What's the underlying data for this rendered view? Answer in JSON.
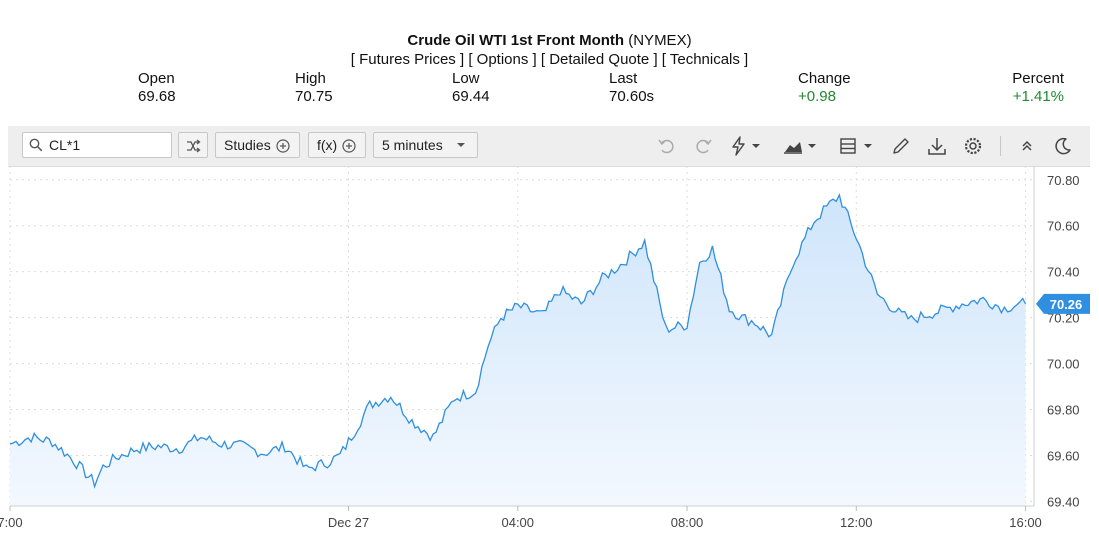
{
  "header": {
    "title_bold": "Crude Oil WTI 1st Front Month",
    "title_exchange": "(NYMEX)",
    "links": [
      "[ Futures Prices ]",
      "[ Options ]",
      "[ Detailed Quote ]",
      "[ Technicals ]"
    ],
    "stats": [
      {
        "label": "Open",
        "value": "69.68"
      },
      {
        "label": "High",
        "value": "70.75"
      },
      {
        "label": "Low",
        "value": "69.44"
      },
      {
        "label": "Last",
        "value": "70.60s"
      },
      {
        "label": "Change",
        "value": "+0.98"
      },
      {
        "label": "Percent",
        "value": "+1.41%"
      }
    ]
  },
  "toolbar": {
    "search_value": "CL*1",
    "studies_label": "Studies",
    "fx_label": "f(x)",
    "interval_label": "5 minutes",
    "icons": [
      "compare-icon",
      "undo-icon",
      "redo-icon",
      "lightning-icon",
      "chart-type-icon",
      "layout-icon",
      "pencil-icon",
      "download-icon",
      "gear-icon",
      "collapse-icon",
      "moon-icon"
    ]
  },
  "colors": {
    "line": "#2f8fe0",
    "fill_top": "#cfe5fb",
    "fill_bottom": "#f3f8fe",
    "price_badge": "#2f8fe0",
    "positive": "#1f8a2f"
  },
  "chart_data": {
    "type": "area",
    "x_tick_labels": [
      "7:00",
      "Dec 27",
      "04:00",
      "08:00",
      "12:00",
      "16:00"
    ],
    "x_ticks_hours": [
      0,
      8,
      12,
      16,
      20,
      24
    ],
    "y_ticks": [
      69.4,
      69.6,
      69.8,
      70.0,
      70.2,
      70.4,
      70.6,
      70.8
    ],
    "y_tick_labels": [
      "69.40",
      "69.60",
      "69.80",
      "70.00",
      "70.20",
      "70.40",
      "70.60",
      "70.80"
    ],
    "ylim": [
      69.38,
      70.86
    ],
    "xlim_hours": [
      0,
      24.2
    ],
    "last_value_label": "70.26",
    "grid": true,
    "hours": [
      0,
      0.5,
      1,
      1.5,
      2,
      2.2,
      2.5,
      3,
      3.5,
      4,
      4.5,
      5,
      5.5,
      6,
      6.5,
      7,
      7.5,
      7.8,
      8,
      8.5,
      9,
      9.5,
      10,
      10.5,
      11,
      11.3,
      11.6,
      12,
      12.3,
      12.6,
      13,
      13.5,
      14,
      14.5,
      15,
      15.5,
      16,
      16.3,
      16.6,
      17,
      17.3,
      17.6,
      18,
      18.5,
      19,
      19.3,
      19.6,
      20,
      20.5,
      21,
      21.3,
      21.6,
      22,
      22.5,
      23,
      23.5,
      23.8,
      24
    ],
    "prices": [
      69.65,
      69.68,
      69.66,
      69.58,
      69.48,
      69.55,
      69.59,
      69.63,
      69.64,
      69.63,
      69.68,
      69.65,
      69.64,
      69.61,
      69.64,
      69.54,
      69.57,
      69.6,
      69.66,
      69.82,
      69.86,
      69.75,
      69.68,
      69.85,
      69.88,
      70.08,
      70.2,
      70.25,
      70.23,
      70.21,
      70.32,
      70.26,
      70.37,
      70.44,
      70.53,
      70.15,
      70.17,
      70.44,
      70.5,
      70.24,
      70.2,
      70.18,
      70.12,
      70.44,
      70.62,
      70.68,
      70.73,
      70.55,
      70.3,
      70.22,
      70.19,
      70.21,
      70.23,
      70.26,
      70.28,
      70.24,
      70.26,
      70.26
    ]
  }
}
